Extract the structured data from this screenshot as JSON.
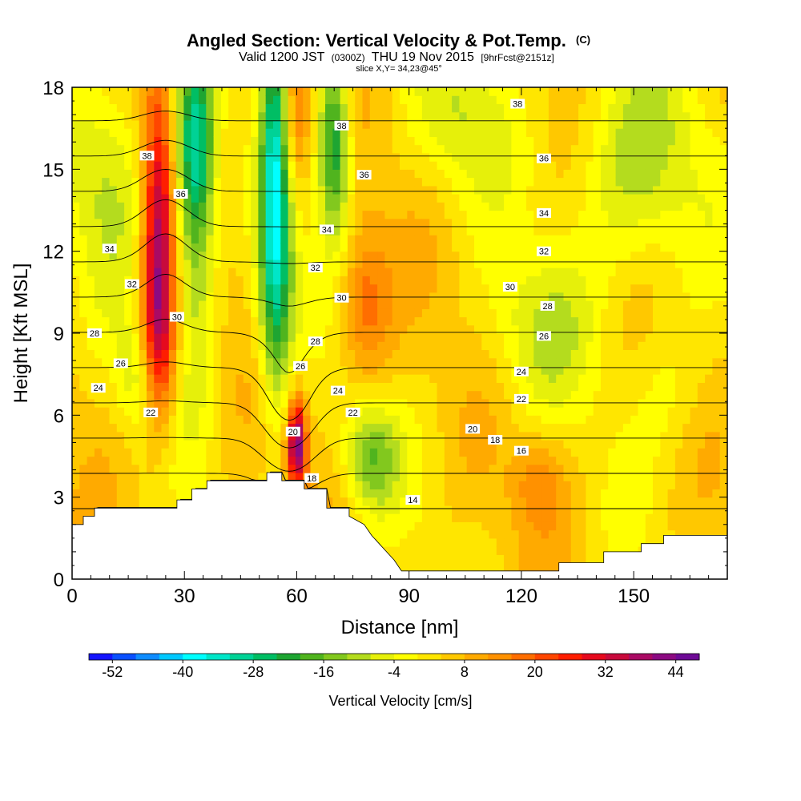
{
  "chart_data": {
    "type": "heatmap",
    "title": "Angled Section: Vertical Velocity & Pot.Temp.",
    "title_mark": "(C)",
    "subtitle": {
      "valid": "Valid 1200 JST",
      "utc": "(0300Z)",
      "date": "THU 19 Nov 2015",
      "fcst": "[9hrFcst@2151z]"
    },
    "slice_label": "slice X,Y= 34,23@45°",
    "xlabel": "Distance [nm]",
    "ylabel": "Height [Kft MSL]",
    "xlim": [
      0,
      175
    ],
    "ylim": [
      0,
      18
    ],
    "x_ticks": [
      0,
      30,
      60,
      90,
      120,
      150
    ],
    "y_ticks": [
      0,
      3,
      6,
      9,
      12,
      15,
      18
    ],
    "grid": false,
    "colorbar": {
      "label": "Vertical Velocity [cm/s]",
      "tick_labels": [
        "-52",
        "-40",
        "-28",
        "-16",
        "-4",
        "8",
        "20",
        "32",
        "44"
      ],
      "colors": [
        "#1414ff",
        "#0a50ff",
        "#0f8cff",
        "#00c8ff",
        "#00ffff",
        "#00e6c8",
        "#00d296",
        "#00be64",
        "#1ea532",
        "#50b41e",
        "#82c81e",
        "#b4dc1e",
        "#e6f00a",
        "#ffff00",
        "#ffe600",
        "#ffc800",
        "#ffaa00",
        "#ff9100",
        "#ff6e00",
        "#ff4600",
        "#ff1e00",
        "#e60a1e",
        "#c80a3c",
        "#aa0a64",
        "#8c0a82",
        "#6e0a96"
      ]
    },
    "velocity_features": [
      {
        "x": 23,
        "z": 12.5,
        "sx": 3,
        "sz": 4,
        "value": 34
      },
      {
        "x": 23,
        "z": 8.5,
        "sx": 4,
        "sz": 2,
        "value": 14
      },
      {
        "x": 33,
        "z": 16,
        "sx": 3.5,
        "sz": 2.5,
        "value": -28
      },
      {
        "x": 33,
        "z": 12,
        "sx": 4,
        "sz": 4,
        "value": -16
      },
      {
        "x": 54,
        "z": 15,
        "sx": 2.5,
        "sz": 4,
        "value": -32
      },
      {
        "x": 55,
        "z": 10,
        "sx": 4,
        "sz": 3,
        "value": -20
      },
      {
        "x": 60,
        "z": 17,
        "sx": 2.5,
        "sz": 2,
        "value": 14
      },
      {
        "x": 60,
        "z": 5,
        "sx": 1.8,
        "sz": 1.2,
        "value": 40
      },
      {
        "x": 70,
        "z": 16,
        "sx": 3,
        "sz": 2.5,
        "value": -30
      },
      {
        "x": 78,
        "z": 10,
        "sx": 5,
        "sz": 2,
        "value": 16
      },
      {
        "x": 80,
        "z": 4.5,
        "sx": 5,
        "sz": 1.4,
        "value": -18
      },
      {
        "x": 18,
        "z": 7.5,
        "sx": 4,
        "sz": 1.5,
        "value": -12
      },
      {
        "x": 10,
        "z": 15,
        "sx": 8,
        "sz": 3,
        "value": -12
      },
      {
        "x": 150,
        "z": 15,
        "sx": 12,
        "sz": 3,
        "value": -14
      },
      {
        "x": 125,
        "z": 9,
        "sx": 10,
        "sz": 2,
        "value": -10
      },
      {
        "x": 105,
        "z": 17,
        "sx": 10,
        "sz": 2,
        "value": -10
      },
      {
        "x": 125,
        "z": 3.5,
        "sx": 5,
        "sz": 1.2,
        "value": 10
      },
      {
        "x": 160,
        "z": 7,
        "sx": 8,
        "sz": 2,
        "value": -6
      }
    ],
    "terrain": [
      [
        0,
        2
      ],
      [
        3,
        2
      ],
      [
        3,
        2.3
      ],
      [
        6,
        2.3
      ],
      [
        6,
        2.6
      ],
      [
        28,
        2.6
      ],
      [
        28,
        2.9
      ],
      [
        32,
        2.9
      ],
      [
        32,
        3.3
      ],
      [
        36,
        3.3
      ],
      [
        36,
        3.6
      ],
      [
        52,
        3.6
      ],
      [
        52,
        3.9
      ],
      [
        56,
        3.9
      ],
      [
        56,
        3.6
      ],
      [
        62,
        3.6
      ],
      [
        62,
        3.3
      ],
      [
        68,
        3.3
      ],
      [
        68,
        2.6
      ],
      [
        74,
        2.6
      ],
      [
        74,
        2.3
      ],
      [
        78,
        2
      ],
      [
        80,
        1.6
      ],
      [
        82,
        1.3
      ],
      [
        84,
        1
      ],
      [
        86,
        0.7
      ],
      [
        88,
        0.3
      ],
      [
        130,
        0.3
      ],
      [
        130,
        0.6
      ],
      [
        142,
        0.6
      ],
      [
        142,
        1
      ],
      [
        152,
        1
      ],
      [
        152,
        1.3
      ],
      [
        158,
        1.3
      ],
      [
        158,
        1.6
      ],
      [
        175,
        1.6
      ]
    ],
    "isentropes": [
      14,
      16,
      18,
      20,
      22,
      24,
      26,
      28,
      30,
      32,
      34,
      36,
      38
    ],
    "isentrope_labels": [
      {
        "text": "38",
        "x": 20,
        "z": 15.5
      },
      {
        "text": "36",
        "x": 29,
        "z": 14.1
      },
      {
        "text": "34",
        "x": 10,
        "z": 12.1
      },
      {
        "text": "32",
        "x": 16,
        "z": 10.8
      },
      {
        "text": "30",
        "x": 28,
        "z": 9.6
      },
      {
        "text": "28",
        "x": 6,
        "z": 9
      },
      {
        "text": "26",
        "x": 13,
        "z": 7.9
      },
      {
        "text": "24",
        "x": 7,
        "z": 7
      },
      {
        "text": "22",
        "x": 21,
        "z": 6.1
      },
      {
        "text": "38",
        "x": 72,
        "z": 16.6
      },
      {
        "text": "36",
        "x": 78,
        "z": 14.8
      },
      {
        "text": "34",
        "x": 68,
        "z": 12.8
      },
      {
        "text": "32",
        "x": 65,
        "z": 11.4
      },
      {
        "text": "30",
        "x": 72,
        "z": 10.3
      },
      {
        "text": "28",
        "x": 65,
        "z": 8.7
      },
      {
        "text": "26",
        "x": 61,
        "z": 7.8
      },
      {
        "text": "24",
        "x": 71,
        "z": 6.9
      },
      {
        "text": "22",
        "x": 75,
        "z": 6.1
      },
      {
        "text": "20",
        "x": 59,
        "z": 5.4
      },
      {
        "text": "18",
        "x": 64,
        "z": 3.7
      },
      {
        "text": "14",
        "x": 91,
        "z": 2.9
      },
      {
        "text": "38",
        "x": 119,
        "z": 17.4
      },
      {
        "text": "36",
        "x": 126,
        "z": 15.4
      },
      {
        "text": "34",
        "x": 126,
        "z": 13.4
      },
      {
        "text": "32",
        "x": 126,
        "z": 12
      },
      {
        "text": "30",
        "x": 117,
        "z": 10.7
      },
      {
        "text": "28",
        "x": 127,
        "z": 10
      },
      {
        "text": "26",
        "x": 126,
        "z": 8.9
      },
      {
        "text": "24",
        "x": 120,
        "z": 7.6
      },
      {
        "text": "22",
        "x": 120,
        "z": 6.6
      },
      {
        "text": "20",
        "x": 107,
        "z": 5.5
      },
      {
        "text": "18",
        "x": 113,
        "z": 5.1
      },
      {
        "text": "16",
        "x": 120,
        "z": 4.7
      }
    ]
  }
}
